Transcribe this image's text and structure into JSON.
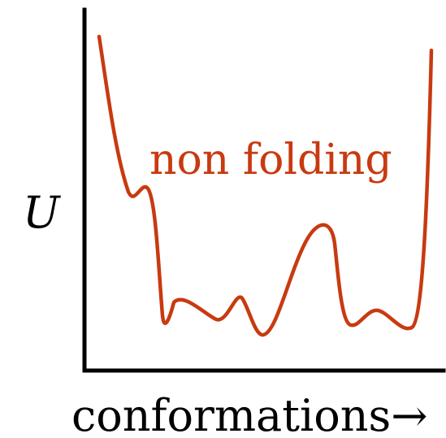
{
  "diagram": {
    "y_label": "U",
    "x_label": "conformations→",
    "annotation": "non folding",
    "colors": {
      "curve": "#c83a10",
      "axis": "#000000",
      "text": "#000000"
    }
  }
}
